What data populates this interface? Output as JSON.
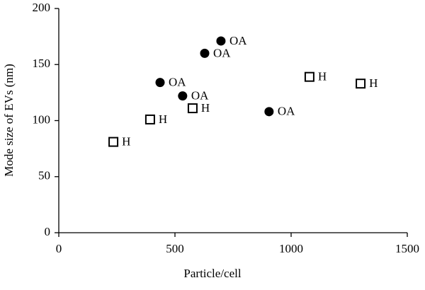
{
  "chart_data": {
    "type": "scatter",
    "x_label": "Particle/cell",
    "y_label": "Mode size of EVs (nm)",
    "xlim": [
      0,
      1500
    ],
    "xticks": [
      0,
      500,
      1000,
      1500
    ],
    "ylim": [
      0,
      200
    ],
    "yticks": [
      0,
      50,
      100,
      150,
      200
    ],
    "grid": false,
    "series": [
      {
        "name": "OA",
        "color": "#000000",
        "marker": "filled-circle",
        "x": [
          436,
          533,
          628,
          698,
          905
        ],
        "values": [
          134,
          122,
          160,
          171,
          108
        ]
      },
      {
        "name": "H",
        "color": "#000000",
        "marker": "open-square",
        "x": [
          235,
          393,
          576,
          1079,
          1299
        ],
        "values": [
          81,
          101,
          111,
          139,
          133
        ]
      }
    ]
  }
}
